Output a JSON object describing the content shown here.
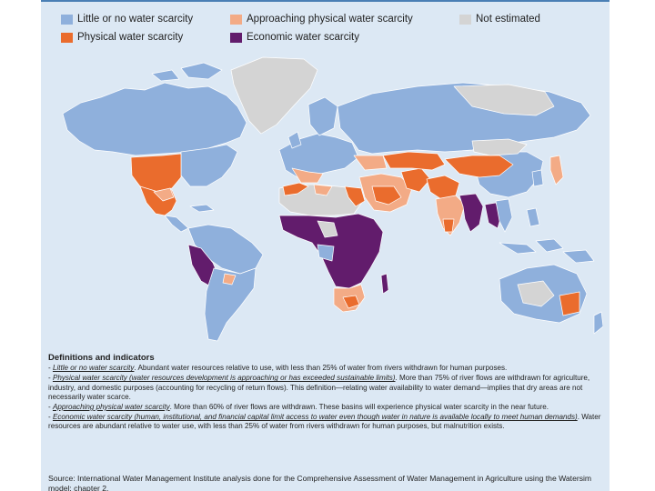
{
  "legend": {
    "items": [
      {
        "label": "Little or no water scarcity",
        "color": "#8fb0dc"
      },
      {
        "label": "Approaching physical water scarcity",
        "color": "#f3ab86"
      },
      {
        "label": "Not estimated",
        "color": "#d4d4d4"
      },
      {
        "label": "Physical water scarcity",
        "color": "#ea6c2d"
      },
      {
        "label": "Economic water scarcity",
        "color": "#621c6c"
      }
    ]
  },
  "map": {
    "ocean_color": "#dce8f4",
    "border_color": "#ffffff"
  },
  "definitions": {
    "title": "Definitions and indicators",
    "items": [
      {
        "lead": "Little or no water scarcity",
        "text": ". Abundant water resources relative to use, with less than 25% of water from rivers withdrawn for human purposes."
      },
      {
        "lead": "Physical water scarcity (water resources development is approaching or has exceeded sustainable limits)",
        "text": ". More than 75% of river flows are withdrawn for agriculture, industry, and domestic purposes (accounting for recycling of return flows). This definition—relating water availability to water demand—implies that dry areas are not necessarily water scarce."
      },
      {
        "lead": "Approaching physical water scarcity",
        "text": ". More than 60% of river flows are withdrawn. These basins will experience physical water scarcity in the near future."
      },
      {
        "lead": "Economic water scarcity (human, institutional, and financial capital limit access to water even though water in nature is available locally to meet human demands)",
        "text": ". Water resources are abundant relative to water use, with less than 25% of water from rivers withdrawn for human purposes, but malnutrition exists."
      }
    ]
  },
  "source": "Source: International Water Management Institute analysis done for the Comprehensive Assessment of Water Management in Agriculture using the Watersim model; chapter 2."
}
